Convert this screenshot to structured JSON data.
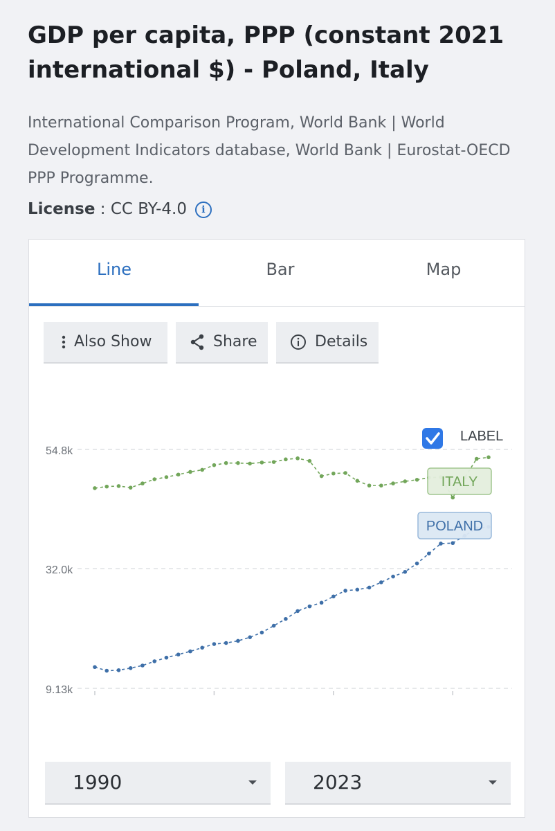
{
  "header": {
    "title": "GDP per capita, PPP (constant 2021 international $) - Poland, Italy",
    "source": "International Comparison Program, World Bank | World Development Indicators database, World Bank | Eurostat-OECD PPP Programme.",
    "license_key": "License",
    "license_sep": " : ",
    "license_value": "CC BY-4.0"
  },
  "tabs": [
    {
      "label": "Line",
      "active": true
    },
    {
      "label": "Bar",
      "active": false
    },
    {
      "label": "Map",
      "active": false
    }
  ],
  "toolbar": {
    "also_show": "Also Show",
    "share": "Share",
    "details": "Details"
  },
  "label_toggle": {
    "text": "LABEL",
    "checked": true
  },
  "range": {
    "start": "1990",
    "end": "2023"
  },
  "colors": {
    "accent": "#2c6fbf",
    "italy": "#72a65a",
    "poland": "#3e6fa8"
  },
  "chart_data": {
    "type": "line",
    "y_ticks": [
      "54.8k",
      "32.0k",
      "9.13k"
    ],
    "y_tick_values": [
      54800,
      32000,
      9130
    ],
    "ylim": [
      9130,
      54800
    ],
    "xlim": [
      1990,
      2023
    ],
    "x": [
      1990,
      1991,
      1992,
      1993,
      1994,
      1995,
      1996,
      1997,
      1998,
      1999,
      2000,
      2001,
      2002,
      2003,
      2004,
      2005,
      2006,
      2007,
      2008,
      2009,
      2010,
      2011,
      2012,
      2013,
      2014,
      2015,
      2016,
      2017,
      2018,
      2019,
      2020,
      2021,
      2022,
      2023
    ],
    "series": [
      {
        "name": "ITALY",
        "values": [
          47400,
          47700,
          47800,
          47500,
          48300,
          49100,
          49500,
          50000,
          50500,
          50900,
          51800,
          52200,
          52200,
          52100,
          52300,
          52400,
          52900,
          53100,
          52600,
          49700,
          50200,
          50300,
          48800,
          47900,
          47900,
          48300,
          48700,
          49000,
          49400,
          49500,
          45600,
          49400,
          53000,
          53300
        ]
      },
      {
        "name": "POLAND",
        "values": [
          13200,
          12500,
          12600,
          13000,
          13500,
          14300,
          15000,
          15600,
          16200,
          16900,
          17600,
          17800,
          18200,
          18900,
          19800,
          21100,
          22400,
          23900,
          24800,
          25500,
          26700,
          27800,
          28000,
          28400,
          29400,
          30500,
          31400,
          33000,
          34900,
          36800,
          36900,
          38300,
          39700,
          40000
        ]
      }
    ]
  }
}
